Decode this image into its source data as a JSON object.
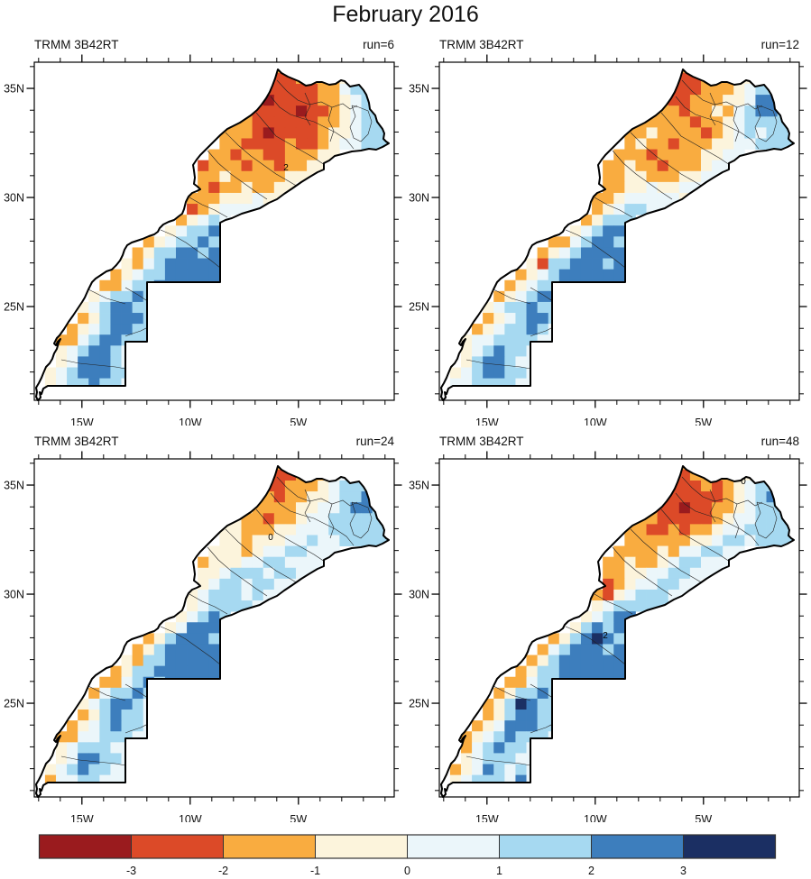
{
  "title": "February 2016",
  "chart_data": {
    "type": "heatmap",
    "title": "February 2016",
    "description_fields": {
      "dataset_label": "TRMM 3B42RT",
      "runs_shown": [
        6,
        12,
        24,
        48
      ]
    },
    "axes": {
      "x_ticks": [
        {
          "deg": 15,
          "label": "15W"
        },
        {
          "deg": 10,
          "label": "10W"
        },
        {
          "deg": 5,
          "label": "5W"
        }
      ],
      "x_minor_degs": [
        17,
        16,
        14,
        13,
        12,
        11,
        9,
        8,
        7,
        6,
        4,
        3,
        2,
        1
      ],
      "y_ticks": [
        {
          "deg": 35,
          "label": "35N"
        },
        {
          "deg": 30,
          "label": "30N"
        },
        {
          "deg": 25,
          "label": "25N"
        }
      ],
      "y_minor_degs": [
        36,
        34,
        33,
        32,
        31,
        29,
        28,
        27,
        26,
        24,
        23,
        22,
        21
      ]
    },
    "colorbar": {
      "tick_labels": [
        "-3",
        "-2",
        "-1",
        "0",
        "1",
        "2",
        "3"
      ],
      "class_colors": [
        "#9A1B1E",
        "#DC4A28",
        "#F9AC40",
        "#FCF4DC",
        "#EBF6FA",
        "#A6D9F1",
        "#3D7EBD",
        "#1B2F63"
      ],
      "class_letters": [
        "A",
        "B",
        "C",
        "D",
        "E",
        "F",
        "G",
        "H"
      ],
      "class_meaning": "anomaly classes from below -3 (A) to above +3 (H)"
    },
    "grid_geometry": {
      "cols": 33,
      "rows": 31,
      "west_lon": 17.2,
      "north_lat": 36.2,
      "cell_deg": 0.5
    },
    "panels": [
      {
        "dataset": "TRMM 3B42RT",
        "run_label": "run=6",
        "annotations": [
          {
            "text": "2",
            "x": 279,
            "y": 120
          }
        ],
        "grid": [
          [
            21,
            "CCB"
          ],
          [
            20,
            "CBBBCCCCDDE"
          ],
          [
            19,
            "CCBBBBBCCEFF"
          ],
          [
            19,
            "BBABBBBCCDEFF"
          ],
          [
            19,
            "CBBBBABBCDEFF"
          ],
          [
            18,
            "CCBBBBBBCCDEFFE"
          ],
          [
            17,
            "CCCBABBBBCDDEFFF"
          ],
          [
            17,
            "CCBBBBCBBCDEEFFF"
          ],
          [
            16,
            "CCBCCBBCCCDD"
          ],
          [
            15,
            "BCCCBCCBCCDD"
          ],
          [
            15,
            "CCDCCCCCDDD"
          ],
          [
            15,
            "CBCCDCCDD"
          ],
          [
            14,
            "CCCDDDEDD"
          ],
          [
            14,
            "BCDEEEE"
          ],
          [
            13,
            "CDEFE"
          ],
          [
            12,
            "DEFFGF"
          ],
          [
            10,
            "CDEFFGFF"
          ],
          [
            9,
            "CDFFGGFGG"
          ],
          [
            8,
            "DCEFGGGGGG"
          ],
          [
            7,
            "CDEFFGGGGGG"
          ],
          [
            6,
            "CCEFFGGGGGGG"
          ],
          [
            5,
            "DEFFGF"
          ],
          [
            4,
            "DEFGGFF"
          ],
          [
            4,
            "CDFGGGF"
          ],
          [
            3,
            "CDEFGGFF"
          ],
          [
            2,
            "CCEFGGFFF"
          ],
          [
            2,
            "DEFGGFE"
          ],
          [
            2,
            "DEGGGFE"
          ],
          [
            1,
            "DEFGGGFF"
          ],
          [
            1,
            "DEFFGFFE"
          ],
          [
            1,
            "EEFGFFEE"
          ]
        ]
      },
      {
        "dataset": "TRMM 3B42RT",
        "run_label": "run=12",
        "annotations": [],
        "grid": [
          [
            21,
            "CCC"
          ],
          [
            20,
            "CCBBCCCDDEF"
          ],
          [
            19,
            "CCBBBCCCDEFF"
          ],
          [
            19,
            "CCBBCCCDDEGGF"
          ],
          [
            19,
            "CCCBCCDCEFGGF"
          ],
          [
            18,
            "CCCCCBCCDEFFFFE"
          ],
          [
            17,
            "CCDCCCCBCDEFEFFF"
          ],
          [
            17,
            "CDCCBCCCDDEEFFFF"
          ],
          [
            16,
            "CCCBCCCCDDEE"
          ],
          [
            15,
            "CCDCCBCCCDEE"
          ],
          [
            15,
            "CCDDCCCDDEE"
          ],
          [
            15,
            "CCDDEDDEE"
          ],
          [
            14,
            "CCDEEEEED"
          ],
          [
            14,
            "CDEFFEE"
          ],
          [
            13,
            "CDFFF"
          ],
          [
            12,
            "DEFGGF"
          ],
          [
            10,
            "CCEFGGFG"
          ],
          [
            9,
            "CDEFGGGGG"
          ],
          [
            8,
            "DBFFGGGFGG"
          ],
          [
            7,
            "CDEFGGGGGGG"
          ],
          [
            6,
            "CDEFFGGGGGGG"
          ],
          [
            5,
            "CDEFGG"
          ],
          [
            4,
            "DEFFGFF"
          ],
          [
            4,
            "CDEFGGF"
          ],
          [
            3,
            "CDEFFGFE"
          ],
          [
            2,
            "DEEFFFFEE"
          ],
          [
            2,
            "DEFGFFE"
          ],
          [
            2,
            "DFGGFEE"
          ],
          [
            1,
            "DEFGGFFE"
          ],
          [
            1,
            "EEFFFFEE"
          ],
          [
            1,
            "EFFFFEEE"
          ]
        ]
      },
      {
        "dataset": "TRMM 3B42RT",
        "run_label": "run=24",
        "annotations": [
          {
            "text": "0",
            "x": 262,
            "y": 90
          }
        ],
        "grid": [
          [
            21,
            "CCC"
          ],
          [
            20,
            "CCBBCCCDEEF"
          ],
          [
            19,
            "CCBBCCCDEFFF"
          ],
          [
            19,
            "CCCBCCDDEFFGF"
          ],
          [
            19,
            "DCCCCDDEEFGGF"
          ],
          [
            18,
            "DCCBCCDEEFFFFFE"
          ],
          [
            17,
            "DDCCCDDEEEFFFFFF"
          ],
          [
            17,
            "DDCDDDEEFEEFFFFF"
          ],
          [
            16,
            "DDDCDEEFFEEE"
          ],
          [
            15,
            "CDDDEEFFEEEE"
          ],
          [
            15,
            "DDEFFFEFFEE"
          ],
          [
            15,
            "DEFFEFFEE"
          ],
          [
            14,
            "DEFFFEFEE"
          ],
          [
            14,
            "DEFFFFE"
          ],
          [
            13,
            "DEFGF"
          ],
          [
            12,
            "DEGGGF"
          ],
          [
            10,
            "CDFGGGFG"
          ],
          [
            9,
            "CDFGGGGGG"
          ],
          [
            8,
            "DCFFGGGGGG"
          ],
          [
            7,
            "CDFFGGGGGGG"
          ],
          [
            6,
            "CCEFGFGGGGGG"
          ],
          [
            5,
            "CEFFGF"
          ],
          [
            4,
            "DEFGGFE"
          ],
          [
            4,
            "CDFGFFE"
          ],
          [
            3,
            "CDEFGFFE"
          ],
          [
            2,
            "CCEEFFFEE"
          ],
          [
            2,
            "DEFFFEE"
          ],
          [
            2,
            "DEGGFFE"
          ],
          [
            1,
            "DEFGFFEE"
          ],
          [
            1,
            "CEEFFEEE"
          ],
          [
            1,
            "EEFFEEEE"
          ]
        ]
      },
      {
        "dataset": "TRMM 3B42RT",
        "run_label": "run=48",
        "annotations": [
          {
            "text": "0",
            "x": 337,
            "y": 28
          },
          {
            "text": "2",
            "x": 184,
            "y": 199
          }
        ],
        "grid": [
          [
            21,
            "CCC"
          ],
          [
            20,
            "CBBCCCCDDEE"
          ],
          [
            19,
            "CBBBBCBCDEFF"
          ],
          [
            19,
            "CBBBBBBCDEFGF"
          ],
          [
            19,
            "CBBABBCCDEFFF"
          ],
          [
            18,
            "CCBBBBBCDEEFFFE"
          ],
          [
            17,
            "CCBBCBCCDEEFFFFF"
          ],
          [
            17,
            "CCCCCCDDEFFEFFFF"
          ],
          [
            16,
            "CCCCDCEEFFEE"
          ],
          [
            15,
            "CCDCCDEFFEEE"
          ],
          [
            15,
            "CCDDEEFFEEE"
          ],
          [
            15,
            "BCDEEFFEE"
          ],
          [
            14,
            "CBDEFFFEE"
          ],
          [
            14,
            "DEFFFFF"
          ],
          [
            13,
            "DEFGG"
          ],
          [
            12,
            "DFGFGG"
          ],
          [
            10,
            "CDFGHGFG"
          ],
          [
            9,
            "CEFGGGFGG"
          ],
          [
            8,
            "CDFGGGGGGG"
          ],
          [
            7,
            "CDFFGGGGGGG"
          ],
          [
            6,
            "CCEFFGGGGGGG"
          ],
          [
            5,
            "CDFFGF"
          ],
          [
            4,
            "CDFHGFF"
          ],
          [
            4,
            "CDFGGFF"
          ],
          [
            3,
            "CDEGGGFF"
          ],
          [
            2,
            "CDEFGFFFE"
          ],
          [
            2,
            "CEFGFFE"
          ],
          [
            2,
            "DEFFFEE"
          ],
          [
            1,
            "CDEGFEFE"
          ],
          [
            1,
            "DEFFFEGE"
          ],
          [
            1,
            "EEFFEEEE"
          ]
        ]
      }
    ]
  }
}
